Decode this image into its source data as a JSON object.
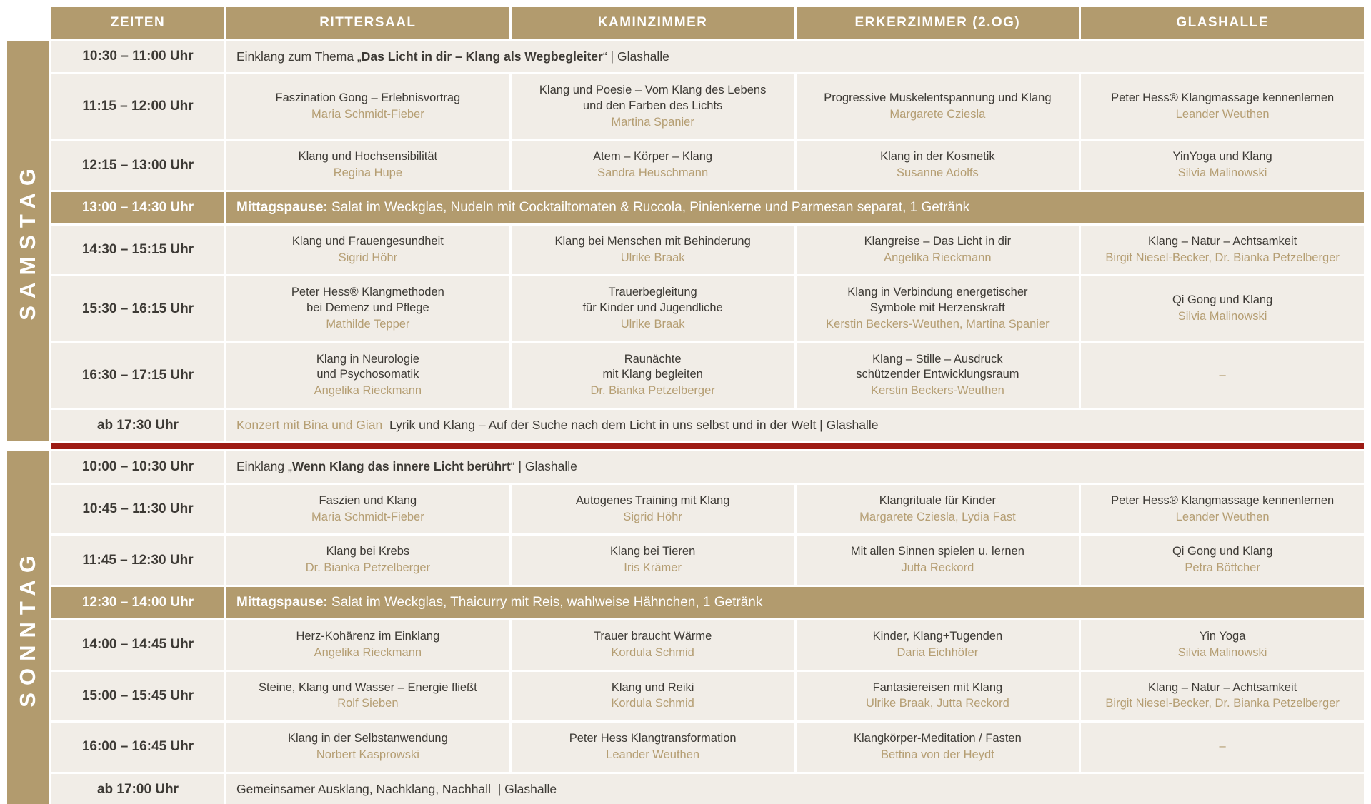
{
  "colors": {
    "tan": "#b29b6e",
    "cream": "#f1ede7",
    "ink": "#3d3a35",
    "gold": "#b59e73",
    "red": "#9d1b14"
  },
  "header": {
    "columns": [
      "ZEITEN",
      "RITTERSAAL",
      "KAMINZIMMER",
      "ERKERZIMMER (2.OG)",
      "GLASHALLE"
    ]
  },
  "days": [
    {
      "label": "SAMSTAG",
      "rows": [
        {
          "type": "banner",
          "time": "10:30 – 11:00 Uhr",
          "segments": [
            {
              "t": "Einklang zum Thema „",
              "s": "n"
            },
            {
              "t": "Das Licht in dir – Klang als Wegbegleiter",
              "s": "b"
            },
            {
              "t": "“ | Glashalle",
              "s": "n"
            }
          ]
        },
        {
          "type": "sessions",
          "time": "11:15 – 12:00 Uhr",
          "cells": [
            {
              "title": "Faszination Gong – Erlebnisvortrag",
              "speaker": "Maria Schmidt-Fieber"
            },
            {
              "title": "Klang und Poesie – Vom Klang des Lebens\nund den Farben des Lichts",
              "speaker": "Martina Spanier"
            },
            {
              "title": "Progressive Muskelentspannung und Klang",
              "speaker": "Margarete Cziesla"
            },
            {
              "title": "Peter Hess® Klangmassage kennenlernen",
              "speaker": "Leander Weuthen"
            }
          ]
        },
        {
          "type": "sessions",
          "time": "12:15 – 13:00 Uhr",
          "cells": [
            {
              "title": "Klang und Hochsensibilität",
              "speaker": "Regina Hupe"
            },
            {
              "title": "Atem – Körper – Klang",
              "speaker": "Sandra Heuschmann"
            },
            {
              "title": "Klang in der Kosmetik",
              "speaker": "Susanne Adolfs"
            },
            {
              "title": "YinYoga und Klang",
              "speaker": "Silvia Malinowski"
            }
          ]
        },
        {
          "type": "break",
          "time": "13:00 – 14:30 Uhr",
          "segments": [
            {
              "t": "Mittagspause: ",
              "s": "b"
            },
            {
              "t": "Salat im Weckglas, Nudeln mit Cocktailtomaten & Ruccola, Pinienkerne und Parmesan separat, 1 Getränk",
              "s": "n"
            }
          ]
        },
        {
          "type": "sessions",
          "time": "14:30 – 15:15 Uhr",
          "cells": [
            {
              "title": "Klang und Frauengesundheit",
              "speaker": "Sigrid Höhr"
            },
            {
              "title": "Klang bei Menschen mit Behinderung",
              "speaker": "Ulrike Braak"
            },
            {
              "title": "Klangreise – Das Licht in dir",
              "speaker": "Angelika Rieckmann"
            },
            {
              "title": "Klang – Natur – Achtsamkeit",
              "speaker": "Birgit Niesel-Becker, Dr. Bianka Petzelberger"
            }
          ]
        },
        {
          "type": "sessions",
          "time": "15:30 – 16:15 Uhr",
          "cells": [
            {
              "title": "Peter Hess® Klangmethoden\nbei Demenz und Pflege",
              "speaker": "Mathilde Tepper"
            },
            {
              "title": "Trauerbegleitung\nfür Kinder und Jugendliche",
              "speaker": "Ulrike Braak"
            },
            {
              "title": "Klang in Verbindung energetischer\nSymbole mit Herzenskraft",
              "speaker": "Kerstin Beckers-Weuthen, Martina Spanier"
            },
            {
              "title": "Qi Gong und Klang",
              "speaker": "Silvia Malinowski"
            }
          ]
        },
        {
          "type": "sessions",
          "time": "16:30 – 17:15 Uhr",
          "cells": [
            {
              "title": "Klang in Neurologie\nund Psychosomatik",
              "speaker": "Angelika Rieckmann"
            },
            {
              "title": "Raunächte\nmit Klang begleiten",
              "speaker": "Dr. Bianka Petzelberger"
            },
            {
              "title": "Klang – Stille – Ausdruck\nschützender Entwicklungsraum",
              "speaker": "Kerstin Beckers-Weuthen"
            },
            {
              "title": "–",
              "speaker": ""
            }
          ]
        },
        {
          "type": "banner",
          "time": "ab 17:30 Uhr",
          "segments": [
            {
              "t": "Konzert mit Bina und Gian",
              "s": "a"
            },
            {
              "t": "  Lyrik und Klang – Auf der Suche nach dem Licht in uns selbst und in der Welt | Glashalle",
              "s": "n"
            }
          ]
        }
      ]
    },
    {
      "label": "SONNTAG",
      "rows": [
        {
          "type": "banner",
          "time": "10:00 – 10:30 Uhr",
          "segments": [
            {
              "t": "Einklang „",
              "s": "n"
            },
            {
              "t": "Wenn Klang das innere Licht berührt",
              "s": "b"
            },
            {
              "t": "“ | Glashalle",
              "s": "n"
            }
          ]
        },
        {
          "type": "sessions",
          "time": "10:45 – 11:30 Uhr",
          "cells": [
            {
              "title": "Faszien und Klang",
              "speaker": "Maria Schmidt-Fieber"
            },
            {
              "title": "Autogenes Training mit Klang",
              "speaker": "Sigrid Höhr"
            },
            {
              "title": "Klangrituale für Kinder",
              "speaker": "Margarete Cziesla, Lydia Fast"
            },
            {
              "title": "Peter Hess® Klangmassage kennenlernen",
              "speaker": "Leander Weuthen"
            }
          ]
        },
        {
          "type": "sessions",
          "time": "11:45 – 12:30 Uhr",
          "cells": [
            {
              "title": "Klang bei Krebs",
              "speaker": "Dr. Bianka Petzelberger"
            },
            {
              "title": "Klang bei Tieren",
              "speaker": "Iris Krämer"
            },
            {
              "title": "Mit allen Sinnen spielen u. lernen",
              "speaker": "Jutta Reckord"
            },
            {
              "title": "Qi Gong und Klang",
              "speaker": "Petra Böttcher"
            }
          ]
        },
        {
          "type": "break",
          "time": "12:30 – 14:00 Uhr",
          "segments": [
            {
              "t": "Mittagspause: ",
              "s": "b"
            },
            {
              "t": "Salat im Weckglas, Thaicurry mit Reis, wahlweise Hähnchen, 1 Getränk",
              "s": "n"
            }
          ]
        },
        {
          "type": "sessions",
          "time": "14:00 – 14:45 Uhr",
          "cells": [
            {
              "title": "Herz-Kohärenz im Einklang",
              "speaker": "Angelika Rieckmann"
            },
            {
              "title": "Trauer braucht Wärme",
              "speaker": "Kordula Schmid"
            },
            {
              "title": "Kinder, Klang+Tugenden",
              "speaker": "Daria Eichhöfer"
            },
            {
              "title": "Yin Yoga",
              "speaker": "Silvia Malinowski"
            }
          ]
        },
        {
          "type": "sessions",
          "time": "15:00 – 15:45 Uhr",
          "cells": [
            {
              "title": "Steine, Klang und Wasser – Energie fließt",
              "speaker": "Rolf Sieben"
            },
            {
              "title": "Klang und Reiki",
              "speaker": "Kordula Schmid"
            },
            {
              "title": "Fantasiereisen mit Klang",
              "speaker": "Ulrike Braak, Jutta Reckord"
            },
            {
              "title": "Klang – Natur – Achtsamkeit",
              "speaker": "Birgit Niesel-Becker, Dr. Bianka Petzelberger"
            }
          ]
        },
        {
          "type": "sessions",
          "time": "16:00 – 16:45 Uhr",
          "cells": [
            {
              "title": "Klang in der Selbstanwendung",
              "speaker": "Norbert Kasprowski"
            },
            {
              "title": "Peter Hess Klangtransformation",
              "speaker": "Leander Weuthen"
            },
            {
              "title": "Klangkörper-Meditation / Fasten",
              "speaker": "Bettina von der Heydt"
            },
            {
              "title": "–",
              "speaker": ""
            }
          ]
        },
        {
          "type": "banner",
          "time": "ab 17:00 Uhr",
          "segments": [
            {
              "t": "Gemeinsamer Ausklang, Nachklang, Nachhall  | Glashalle",
              "s": "n"
            }
          ]
        }
      ]
    }
  ]
}
